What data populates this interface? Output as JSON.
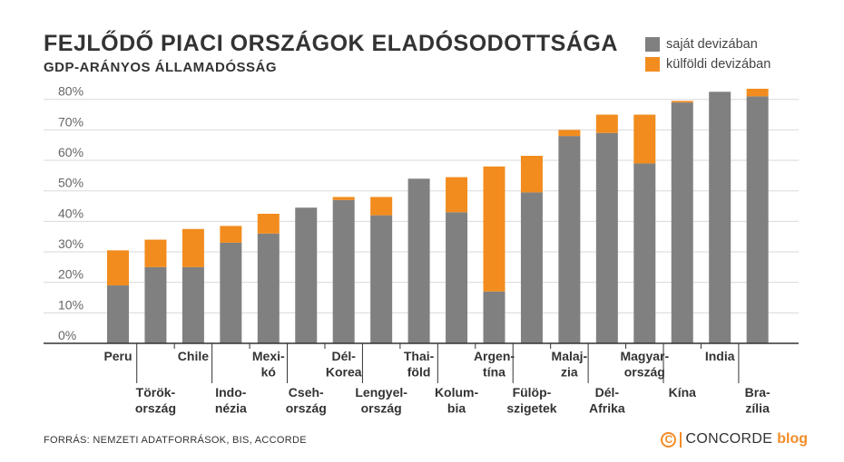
{
  "header": {
    "title": "FEJLŐDŐ PIACI ORSZÁGOK ELADÓSODOTTSÁGA",
    "subtitle": "GDP-ARÁNYOS ÁLLAMADÓSSÁG"
  },
  "footer": {
    "source": "FORRÁS: NEMZETI ADATFORRÁSOK, BIS, ACCORDE",
    "brand_symbol": "C",
    "brand_name": "CONCORDE",
    "brand_blog": "blog"
  },
  "colors": {
    "domestic": "#808080",
    "foreign": "#F28C1E",
    "grid": "#d9d9d9",
    "axis": "#333333"
  },
  "chart_data": {
    "type": "bar",
    "stacked": true,
    "title": "FEJLŐDŐ PIACI ORSZÁGOK ELADÓSODOTTSÁGA",
    "subtitle": "GDP-ARÁNYOS ÁLLAMADÓSSÁG",
    "categories": [
      "Peru",
      "Török-ország",
      "Chile",
      "Indo-nézia",
      "Mexi-kó",
      "Cseh-ország",
      "Dél-Korea",
      "Lengyel-ország",
      "Thai-föld",
      "Kolum-bia",
      "Argen-tína",
      "Fülöp-szigetek",
      "Malaj-zia",
      "Dél-Afrika",
      "Magyar-ország",
      "Kína",
      "India",
      "Bra-zília"
    ],
    "category_labels": [
      [
        "Peru"
      ],
      [
        "Török-",
        "ország"
      ],
      [
        "Chile"
      ],
      [
        "Indo-",
        "nézia"
      ],
      [
        "Mexi-",
        "kó"
      ],
      [
        "Cseh-",
        "ország"
      ],
      [
        "Dél-",
        "Korea"
      ],
      [
        "Lengyel-",
        "ország"
      ],
      [
        "Thai-",
        "föld"
      ],
      [
        "Kolum-",
        "bia"
      ],
      [
        "Argen-",
        "tína"
      ],
      [
        "Fülöp-",
        "szigetek"
      ],
      [
        "Malaj-",
        "zia"
      ],
      [
        "Dél-",
        "Afrika"
      ],
      [
        "Magyar-",
        "ország"
      ],
      [
        "Kína"
      ],
      [
        "India"
      ],
      [
        "Bra-",
        "zília"
      ]
    ],
    "series": [
      {
        "name": "saját devizában",
        "values": [
          19,
          25,
          25,
          33,
          36,
          44.5,
          47,
          42,
          54,
          43,
          17,
          49.5,
          68,
          69,
          59,
          79,
          82.5,
          81
        ]
      },
      {
        "name": "külföldi devizában",
        "values": [
          11.5,
          9,
          12.5,
          5.5,
          6.5,
          0,
          1,
          6,
          0,
          11.5,
          41,
          12,
          2,
          6,
          16,
          0.5,
          0,
          2.5
        ]
      }
    ],
    "yticks": [
      "0%",
      "10%",
      "20%",
      "30%",
      "40%",
      "50%",
      "60%",
      "70%",
      "80%"
    ],
    "ylim": [
      0,
      83
    ],
    "grid": true,
    "legend_position": "top-right"
  }
}
